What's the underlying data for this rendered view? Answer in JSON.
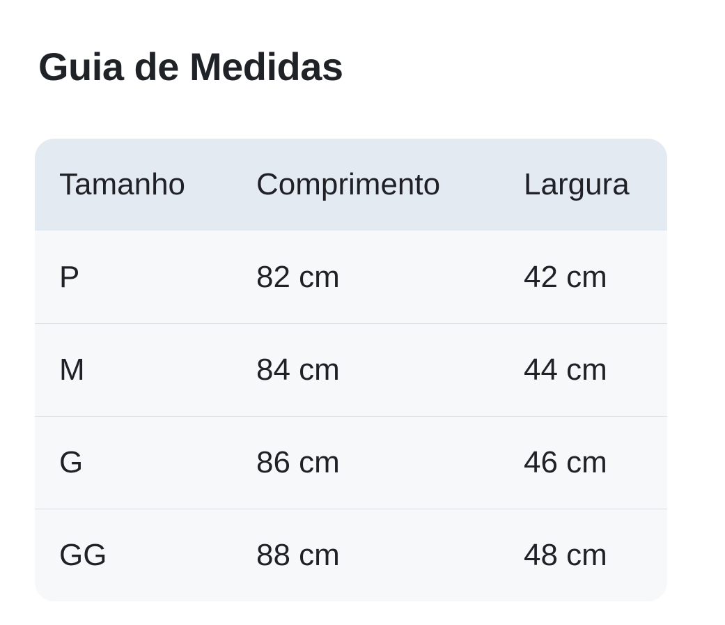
{
  "title": "Guia de Medidas",
  "table": {
    "columns": {
      "size": "Tamanho",
      "length": "Comprimento",
      "width": "Largura"
    },
    "rows": [
      {
        "size": "P",
        "length": "82 cm",
        "width": "42 cm"
      },
      {
        "size": "M",
        "length": "84 cm",
        "width": "44 cm"
      },
      {
        "size": "G",
        "length": "86 cm",
        "width": "46 cm"
      },
      {
        "size": "GG",
        "length": "88 cm",
        "width": "48 cm"
      }
    ]
  },
  "colors": {
    "page_bg": "#ffffff",
    "header_bg": "#e4eaf1",
    "body_bg": "#f7f8fa",
    "divider": "#d9dce0",
    "text": "#1f2126",
    "title_text": "#1f2227"
  }
}
